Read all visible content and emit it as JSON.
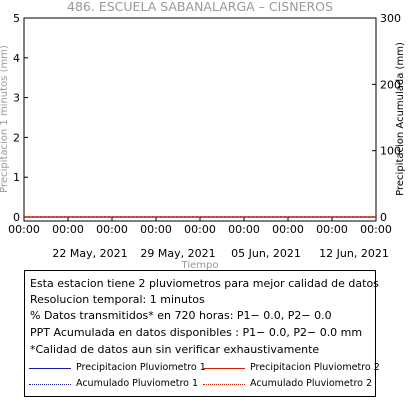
{
  "chart_data": {
    "type": "line",
    "title": "486. ESCUELA SABANALARGA – CISNEROS",
    "xlabel": "Tiempo",
    "ylabel_left": "Precipitacion 1 minutos (mm)",
    "ylabel_right": "Precipitacion Acumulada (mm)",
    "ylim_left": [
      0,
      5
    ],
    "ylim_right": [
      0,
      300
    ],
    "yticks_left": [
      "0",
      "1",
      "2",
      "3",
      "4",
      "5"
    ],
    "yticks_right": [
      "0",
      "100",
      "200",
      "300"
    ],
    "xticks_time": [
      "00:00",
      "00:00",
      "00:00",
      "00:00",
      "00:00",
      "00:00",
      "00:00",
      "00:00",
      "00:00"
    ],
    "xticks_date": [
      "22 May, 2021",
      "29 May, 2021",
      "05 Jun, 2021",
      "12 Jun, 2021"
    ],
    "grid": false,
    "series": [
      {
        "name": "Precipitacion Pluviometro 1",
        "color": "#1a1aa6",
        "style": "solid",
        "axis": "left",
        "values": [
          0,
          0,
          0,
          0,
          0,
          0,
          0,
          0,
          0
        ]
      },
      {
        "name": "Precipitacion Pluviometro 2",
        "color": "#cc2200",
        "style": "solid",
        "axis": "left",
        "values": [
          0,
          0,
          0,
          0,
          0,
          0,
          0,
          0,
          0
        ]
      },
      {
        "name": "Acumulado Pluviometro 1",
        "color": "#1a1aa6",
        "style": "dotted",
        "axis": "right",
        "values": [
          0,
          0,
          0,
          0,
          0,
          0,
          0,
          0,
          0
        ]
      },
      {
        "name": "Acumulado Pluviometro 2",
        "color": "#cc2200",
        "style": "dotted",
        "axis": "right",
        "values": [
          0,
          0,
          0,
          0,
          0,
          0,
          0,
          0,
          0
        ]
      }
    ]
  },
  "info": {
    "line1": "Esta estacion tiene 2 pluviometros para mejor calidad de datos",
    "line2": "Resolucion temporal: 1 minutos",
    "line3": "% Datos transmitidos* en 720 horas: P1−  0.0, P2−  0.0",
    "line4": "PPT Acumulada en datos disponibles : P1−  0.0, P2−  0.0 mm",
    "line5": "*Calidad de datos aun sin verificar exhaustivamente"
  }
}
